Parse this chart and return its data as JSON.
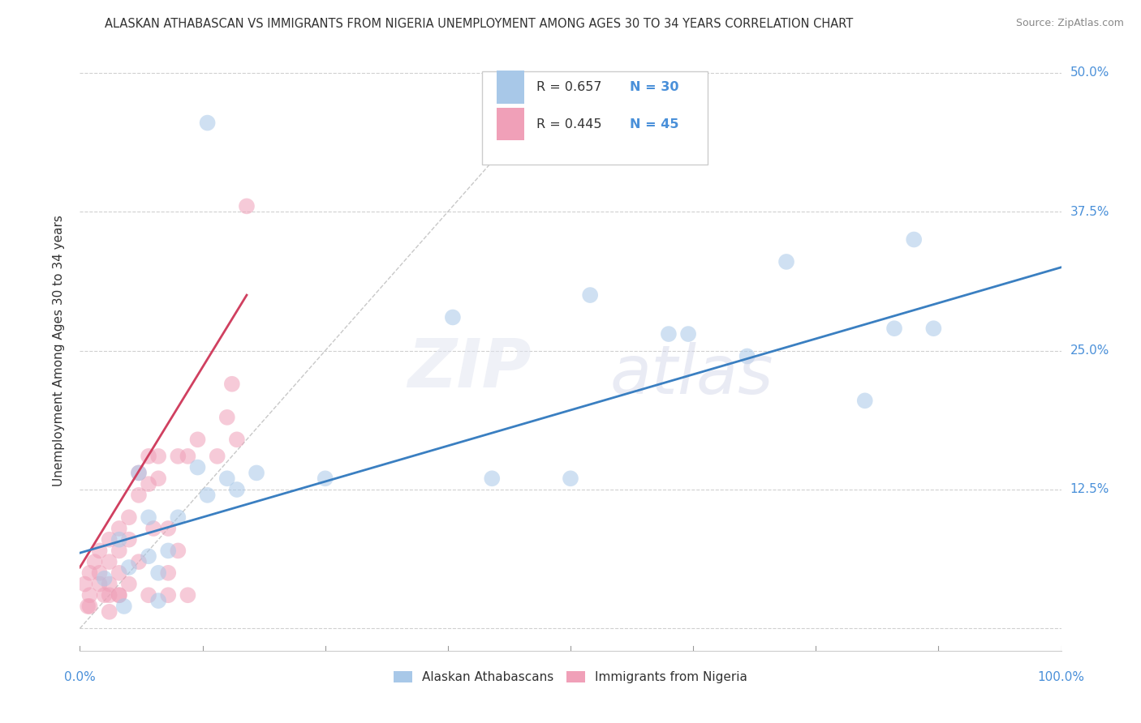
{
  "title": "ALASKAN ATHABASCAN VS IMMIGRANTS FROM NIGERIA UNEMPLOYMENT AMONG AGES 30 TO 34 YEARS CORRELATION CHART",
  "source": "Source: ZipAtlas.com",
  "ylabel": "Unemployment Among Ages 30 to 34 years",
  "xlim": [
    0,
    1.0
  ],
  "ylim": [
    -0.02,
    0.52
  ],
  "xticks": [
    0.0,
    0.125,
    0.25,
    0.375,
    0.5,
    0.625,
    0.75,
    0.875,
    1.0
  ],
  "xticklabels": [
    "0.0%",
    "",
    "",
    "",
    "",
    "",
    "",
    "",
    "100.0%"
  ],
  "ytick_positions": [
    0.0,
    0.125,
    0.25,
    0.375,
    0.5
  ],
  "yticklabels": [
    "",
    "12.5%",
    "25.0%",
    "37.5%",
    "50.0%"
  ],
  "background_color": "#ffffff",
  "grid_color": "#d0d0d0",
  "blue_R": 0.657,
  "blue_N": 30,
  "pink_R": 0.445,
  "pink_N": 45,
  "blue_color": "#a8c8e8",
  "pink_color": "#f0a0b8",
  "blue_line_color": "#3a7fc1",
  "pink_line_color": "#d04060",
  "tick_color": "#4a90d9",
  "blue_scatter_x": [
    0.025,
    0.04,
    0.045,
    0.05,
    0.06,
    0.07,
    0.07,
    0.08,
    0.08,
    0.09,
    0.1,
    0.12,
    0.13,
    0.15,
    0.16,
    0.18,
    0.25,
    0.38,
    0.42,
    0.5,
    0.52,
    0.6,
    0.62,
    0.68,
    0.72,
    0.8,
    0.83,
    0.85,
    0.87,
    0.13
  ],
  "blue_scatter_y": [
    0.045,
    0.08,
    0.02,
    0.055,
    0.14,
    0.1,
    0.065,
    0.05,
    0.025,
    0.07,
    0.1,
    0.145,
    0.12,
    0.135,
    0.125,
    0.14,
    0.135,
    0.28,
    0.135,
    0.135,
    0.3,
    0.265,
    0.265,
    0.245,
    0.33,
    0.205,
    0.27,
    0.35,
    0.27,
    0.455
  ],
  "pink_scatter_x": [
    0.005,
    0.008,
    0.01,
    0.01,
    0.01,
    0.015,
    0.02,
    0.02,
    0.02,
    0.025,
    0.03,
    0.03,
    0.03,
    0.03,
    0.03,
    0.04,
    0.04,
    0.04,
    0.04,
    0.05,
    0.05,
    0.06,
    0.06,
    0.07,
    0.07,
    0.075,
    0.08,
    0.08,
    0.09,
    0.09,
    0.1,
    0.1,
    0.11,
    0.12,
    0.14,
    0.15,
    0.155,
    0.16,
    0.17,
    0.04,
    0.05,
    0.06,
    0.07,
    0.09,
    0.11
  ],
  "pink_scatter_y": [
    0.04,
    0.02,
    0.05,
    0.03,
    0.02,
    0.06,
    0.07,
    0.05,
    0.04,
    0.03,
    0.06,
    0.08,
    0.04,
    0.03,
    0.015,
    0.09,
    0.07,
    0.05,
    0.03,
    0.1,
    0.08,
    0.14,
    0.12,
    0.155,
    0.13,
    0.09,
    0.155,
    0.135,
    0.09,
    0.05,
    0.155,
    0.07,
    0.155,
    0.17,
    0.155,
    0.19,
    0.22,
    0.17,
    0.38,
    0.03,
    0.04,
    0.06,
    0.03,
    0.03,
    0.03
  ],
  "blue_line_x": [
    0.0,
    1.0
  ],
  "blue_line_y": [
    0.068,
    0.325
  ],
  "pink_line_x": [
    0.0,
    0.17
  ],
  "pink_line_y": [
    0.055,
    0.3
  ],
  "diag_line_color": "#c8c8c8"
}
